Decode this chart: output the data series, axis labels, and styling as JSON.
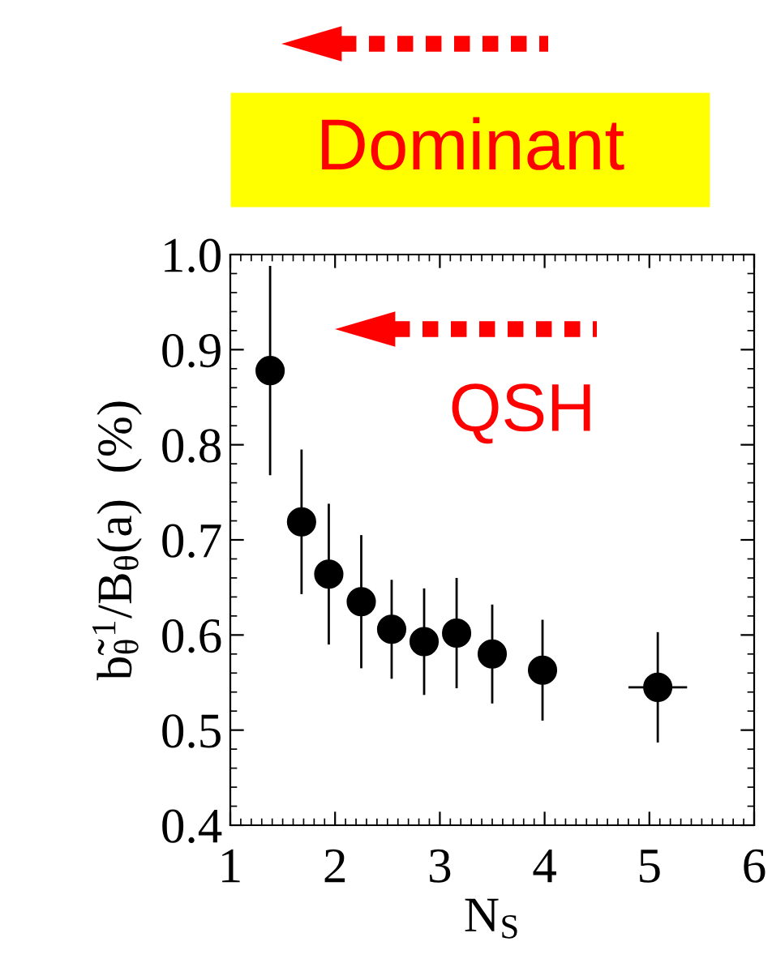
{
  "chart_data": {
    "type": "scatter",
    "xlabel": "N$_{S}$",
    "ylabel": "b̃$_{θ}$$^{1}$/B$_{θ}$(a)  (%)",
    "x": [
      1.38,
      1.68,
      1.94,
      2.25,
      2.54,
      2.85,
      3.16,
      3.5,
      3.98,
      5.08
    ],
    "series": [
      {
        "color": "#000000",
        "values": [
          0.878,
          0.719,
          0.664,
          0.635,
          0.606,
          0.593,
          0.602,
          0.58,
          0.563,
          0.545
        ],
        "errors": [
          0.11,
          0.076,
          0.074,
          0.07,
          0.052,
          0.056,
          0.058,
          0.052,
          0.053,
          0.058
        ],
        "xerrors": [
          null,
          null,
          null,
          null,
          null,
          null,
          null,
          null,
          null,
          0.28
        ]
      }
    ],
    "marker": "circle",
    "xlim": [
      1,
      6
    ],
    "ylim": [
      0.4,
      1.0
    ],
    "xticks": [
      1,
      2,
      3,
      4,
      5,
      6
    ],
    "yticks": [
      {
        "value": 0.4,
        "label": "0.4"
      },
      {
        "value": 0.5,
        "label": "0.5"
      },
      {
        "value": 0.6,
        "label": "0.6"
      },
      {
        "value": 0.7,
        "label": "0.7"
      },
      {
        "value": 0.8,
        "label": "0.8"
      },
      {
        "value": 0.9,
        "label": "0.9"
      },
      {
        "value": 1.0,
        "label": "1.0"
      }
    ],
    "grid": false,
    "annotations": [
      "Dominant",
      "QSH"
    ]
  }
}
